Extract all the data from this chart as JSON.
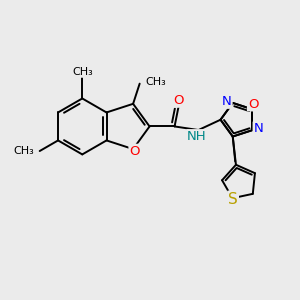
{
  "bg_color": "#ebebeb",
  "bond_color": "#000000",
  "atom_colors": {
    "O": "#ff0000",
    "N": "#0000ff",
    "S": "#b8a000",
    "NH": "#008888",
    "C": "#000000"
  },
  "bond_lw": 1.4,
  "font_size": 9.5,
  "xlim": [
    0,
    10
  ],
  "ylim": [
    0,
    10
  ]
}
